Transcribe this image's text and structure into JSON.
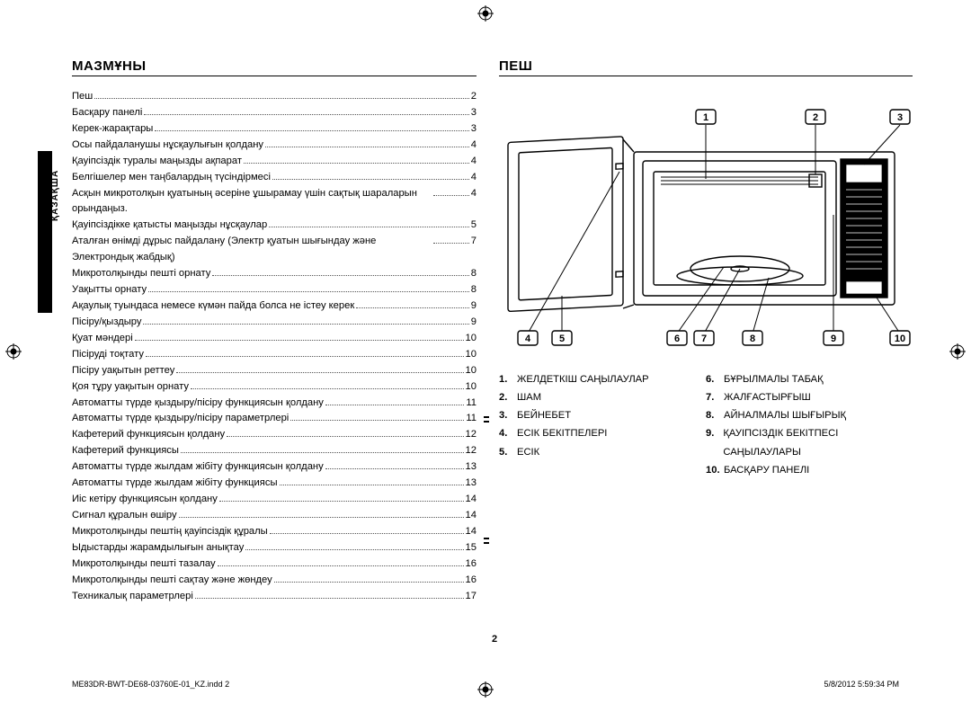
{
  "language_tab": "ҚАЗАҚША",
  "page_number": "2",
  "footer_left": "ME83DR-BWT-DE68-03760E-01_KZ.indd   2",
  "footer_right": "5/8/2012   5:59:34 PM",
  "left": {
    "title": "МАЗМҰНЫ",
    "toc": [
      {
        "label": "Пеш",
        "page": "2"
      },
      {
        "label": "Басқару панелі",
        "page": "3"
      },
      {
        "label": "Керек-жарақтары",
        "page": "3"
      },
      {
        "label": "Осы пайдаланушы нұсқаулығын қолдану",
        "page": "4"
      },
      {
        "label": "Қауіпсіздік туралы маңызды ақпарат",
        "page": "4"
      },
      {
        "label": "Белгішелер мен таңбалардың түсіндірмесі",
        "page": "4"
      },
      {
        "label": "Асқын микротолқын қуатының әсеріне ұшырамау үшін сақтық шараларын орындаңыз.",
        "page": "4",
        "wrap": true
      },
      {
        "label": "Қауіпсіздікке қатысты маңызды нұсқаулар",
        "page": "5"
      },
      {
        "label": "Аталған өнімді дұрыс пайдалану (Электр қуатын шығындау және Электрондық жабдық)",
        "page": "7",
        "wrap": true
      },
      {
        "label": "Микротолқынды пешті орнату",
        "page": "8"
      },
      {
        "label": "Уақытты орнату",
        "page": "8"
      },
      {
        "label": "Ақаулық туындаса немесе күмән пайда болса не істеу керек",
        "page": "9"
      },
      {
        "label": "Пісіру/қыздыру",
        "page": "9"
      },
      {
        "label": "Қуат мәндері",
        "page": "10"
      },
      {
        "label": "Пісіруді тоқтату",
        "page": "10"
      },
      {
        "label": "Пісіру уақытын реттеу",
        "page": "10"
      },
      {
        "label": "Қоя тұру уақытын орнату",
        "page": "10"
      },
      {
        "label": "Автоматты түрде қыздыру/пісіру функциясын қолдану",
        "page": "11"
      },
      {
        "label": "Автоматты түрде қыздыру/пісіру параметрлері",
        "page": "11"
      },
      {
        "label": "Кафетерий функциясын қолдану",
        "page": "12"
      },
      {
        "label": "Кафетерий функциясы",
        "page": "12"
      },
      {
        "label": "Автоматты түрде жылдам жібіту функциясын қолдану",
        "page": "13"
      },
      {
        "label": "Автоматты түрде жылдам жібіту функциясы",
        "page": "13"
      },
      {
        "label": "Иіс кетіру функциясын қолдану",
        "page": "14"
      },
      {
        "label": "Сигнал құралын өшіру",
        "page": "14"
      },
      {
        "label": "Микротолқынды пештің қауіпсіздік құралы",
        "page": "14"
      },
      {
        "label": "Ыдыстарды жарамдылығын анықтау",
        "page": "15"
      },
      {
        "label": "Микротолқынды пешті тазалау",
        "page": "16"
      },
      {
        "label": "Микротолқынды пешті сақтау және жөндеу",
        "page": "16"
      },
      {
        "label": "Техникалық параметрлері",
        "page": "17"
      }
    ]
  },
  "right": {
    "title": "ПЕШ",
    "callouts": [
      "1",
      "2",
      "3",
      "4",
      "5",
      "6",
      "7",
      "8",
      "9",
      "10"
    ],
    "parts_left": [
      {
        "n": "1.",
        "t": "ЖЕЛДЕТКІШ САҢЫЛАУЛАР"
      },
      {
        "n": "2.",
        "t": "ШАМ"
      },
      {
        "n": "3.",
        "t": "БЕЙНЕБЕТ"
      },
      {
        "n": "4.",
        "t": "ЕСІК БЕКІТПЕЛЕРІ"
      },
      {
        "n": "5.",
        "t": "ЕСІК"
      }
    ],
    "parts_right": [
      {
        "n": "6.",
        "t": "БҰРЫЛМАЛЫ ТАБАҚ"
      },
      {
        "n": "7.",
        "t": "ЖАЛҒАСТЫРҒЫШ"
      },
      {
        "n": "8.",
        "t": "АЙНАЛМАЛЫ ШЫҒЫРЫҚ"
      },
      {
        "n": "9.",
        "t": "ҚАУІПСІЗДІК БЕКІТПЕСІ САҢЫЛАУЛАРЫ"
      },
      {
        "n": "10.",
        "t": "БАСҚАРУ ПАНЕЛІ"
      }
    ],
    "diagram": {
      "stroke": "#000000",
      "fill": "#ffffff",
      "panel_fill": "#000000",
      "text_color": "#000000"
    }
  }
}
